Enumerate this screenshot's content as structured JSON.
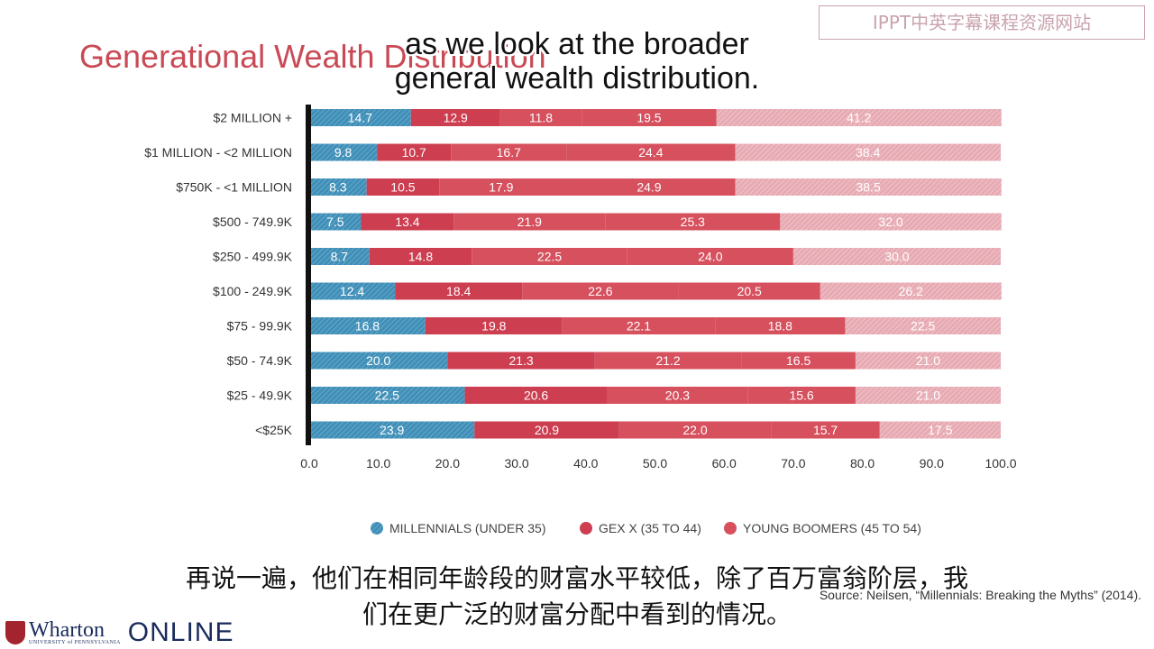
{
  "slide": {
    "title": "Generational Wealth Distribution",
    "watermark": "IPPT中英字幕课程资源网站",
    "subtitle_en_line1": "as we look at the broader",
    "subtitle_en_line2": "general wealth distribution.",
    "subtitle_zh_line1": "再说一遍，他们在相同年龄段的财富水平较低，除了百万富翁阶层，我",
    "subtitle_zh_line2": "们在更广泛的财富分配中看到的情况。",
    "source": "Source:  Neilsen, “Millennials: Breaking the Myths” (2014).",
    "logo_name": "Wharton",
    "logo_university": "UNIVERSITY of PENNSYLVANIA",
    "logo_online": "ONLINE"
  },
  "colors": {
    "title": "#c94a55",
    "millennials": "#3f8fb8",
    "genx": "#cc3e50",
    "young_boomers": "#d6505e",
    "older": "#e7aab3"
  },
  "chart_data": {
    "type": "bar",
    "orientation": "horizontal",
    "stacked": true,
    "categories": [
      "$2 MILLION +",
      "$1 MILLION - <2 MILLION",
      "$750K - <1 MILLION",
      "$500 - 749.9K",
      "$250 - 499.9K",
      "$100 - 249.9K",
      "$75 - 99.9K",
      "$50 - 74.9K",
      "$25 - 49.9K",
      "<$25K"
    ],
    "series": [
      {
        "name": "MILLENNIALS (UNDER 35)",
        "values": [
          14.7,
          9.8,
          8.3,
          7.5,
          8.7,
          12.4,
          16.8,
          20.0,
          22.5,
          23.9
        ]
      },
      {
        "name": "GEX X (35 TO 44)",
        "values": [
          12.9,
          10.7,
          10.5,
          13.4,
          14.8,
          18.4,
          19.8,
          21.3,
          20.6,
          20.9
        ]
      },
      {
        "name": "",
        "values": [
          11.8,
          16.7,
          17.9,
          21.9,
          22.5,
          22.6,
          22.1,
          21.2,
          20.3,
          22.0
        ]
      },
      {
        "name": "YOUNG BOOMERS (45 TO 54)",
        "values": [
          19.5,
          24.4,
          24.9,
          25.3,
          24.0,
          20.5,
          18.8,
          16.5,
          15.6,
          15.7
        ]
      },
      {
        "name": "",
        "values": [
          41.2,
          38.4,
          38.5,
          32.0,
          30.0,
          26.2,
          22.5,
          21.0,
          21.0,
          17.5
        ]
      }
    ],
    "value_labels": [
      [
        "14.7",
        "12.9",
        "11.8",
        "19.5",
        "41.2"
      ],
      [
        "9.8",
        "10.7",
        "16.7",
        "24.4",
        "38.4"
      ],
      [
        "8.3",
        "10.5",
        "17.9",
        "24.9",
        "38.5"
      ],
      [
        "7.5",
        "13.4",
        "21.9",
        "25.3",
        "32.0"
      ],
      [
        "8.7",
        "14.8",
        "22.5",
        "24.0",
        "30.0"
      ],
      [
        "12.4",
        "18.4",
        "22.6",
        "20.5",
        "26.2"
      ],
      [
        "16.8",
        "19.8",
        "22.1",
        "18.8",
        "22.5"
      ],
      [
        "20.0",
        "21.3",
        "21.2",
        "16.5",
        "21.0"
      ],
      [
        "22.5",
        "20.6",
        "20.3",
        "15.6",
        "21.0"
      ],
      [
        "23.9",
        "20.9",
        "22.0",
        "15.7",
        "17.5"
      ]
    ],
    "x_ticks": [
      "0.0",
      "10.0",
      "20.0",
      "30.0",
      "40.0",
      "50.0",
      "60.0",
      "70.0",
      "80.0",
      "90.0",
      "100.0"
    ],
    "xlim": [
      0,
      100
    ],
    "legend_position": "bottom",
    "legend": [
      "MILLENNIALS (UNDER 35)",
      "GEX X (35 TO 44)",
      "YOUNG BOOMERS (45 TO 54)"
    ],
    "grid": false,
    "title": "Generational Wealth Distribution",
    "xlabel": "",
    "ylabel": ""
  }
}
